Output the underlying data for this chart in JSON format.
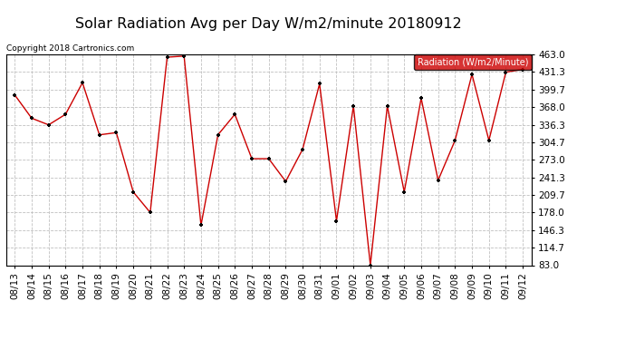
{
  "title": "Solar Radiation Avg per Day W/m2/minute 20180912",
  "copyright": "Copyright 2018 Cartronics.com",
  "legend_label": "Radiation (W/m2/Minute)",
  "dates": [
    "08/13",
    "08/14",
    "08/15",
    "08/16",
    "08/17",
    "08/18",
    "08/19",
    "08/20",
    "08/21",
    "08/22",
    "08/23",
    "08/24",
    "08/25",
    "08/26",
    "08/27",
    "08/28",
    "08/29",
    "08/30",
    "08/31",
    "09/01",
    "09/02",
    "09/03",
    "09/04",
    "09/05",
    "09/06",
    "09/07",
    "09/08",
    "09/09",
    "09/10",
    "09/11",
    "09/12"
  ],
  "values": [
    390,
    348,
    336,
    355,
    412,
    318,
    322,
    215,
    178,
    458,
    460,
    155,
    318,
    355,
    275,
    275,
    234,
    292,
    410,
    163,
    370,
    83,
    370,
    215,
    384,
    236,
    308,
    427,
    308,
    431,
    436
  ],
  "yticks": [
    83.0,
    114.7,
    146.3,
    178.0,
    209.7,
    241.3,
    273.0,
    304.7,
    336.3,
    368.0,
    399.7,
    431.3,
    463.0
  ],
  "ymin": 83.0,
  "ymax": 463.0,
  "line_color": "#cc0000",
  "marker_color": "#000000",
  "bg_color": "#ffffff",
  "grid_color": "#c0c0c0",
  "title_fontsize": 11.5,
  "tick_fontsize": 7.5,
  "legend_bg": "#cc0000",
  "legend_text_color": "#ffffff"
}
